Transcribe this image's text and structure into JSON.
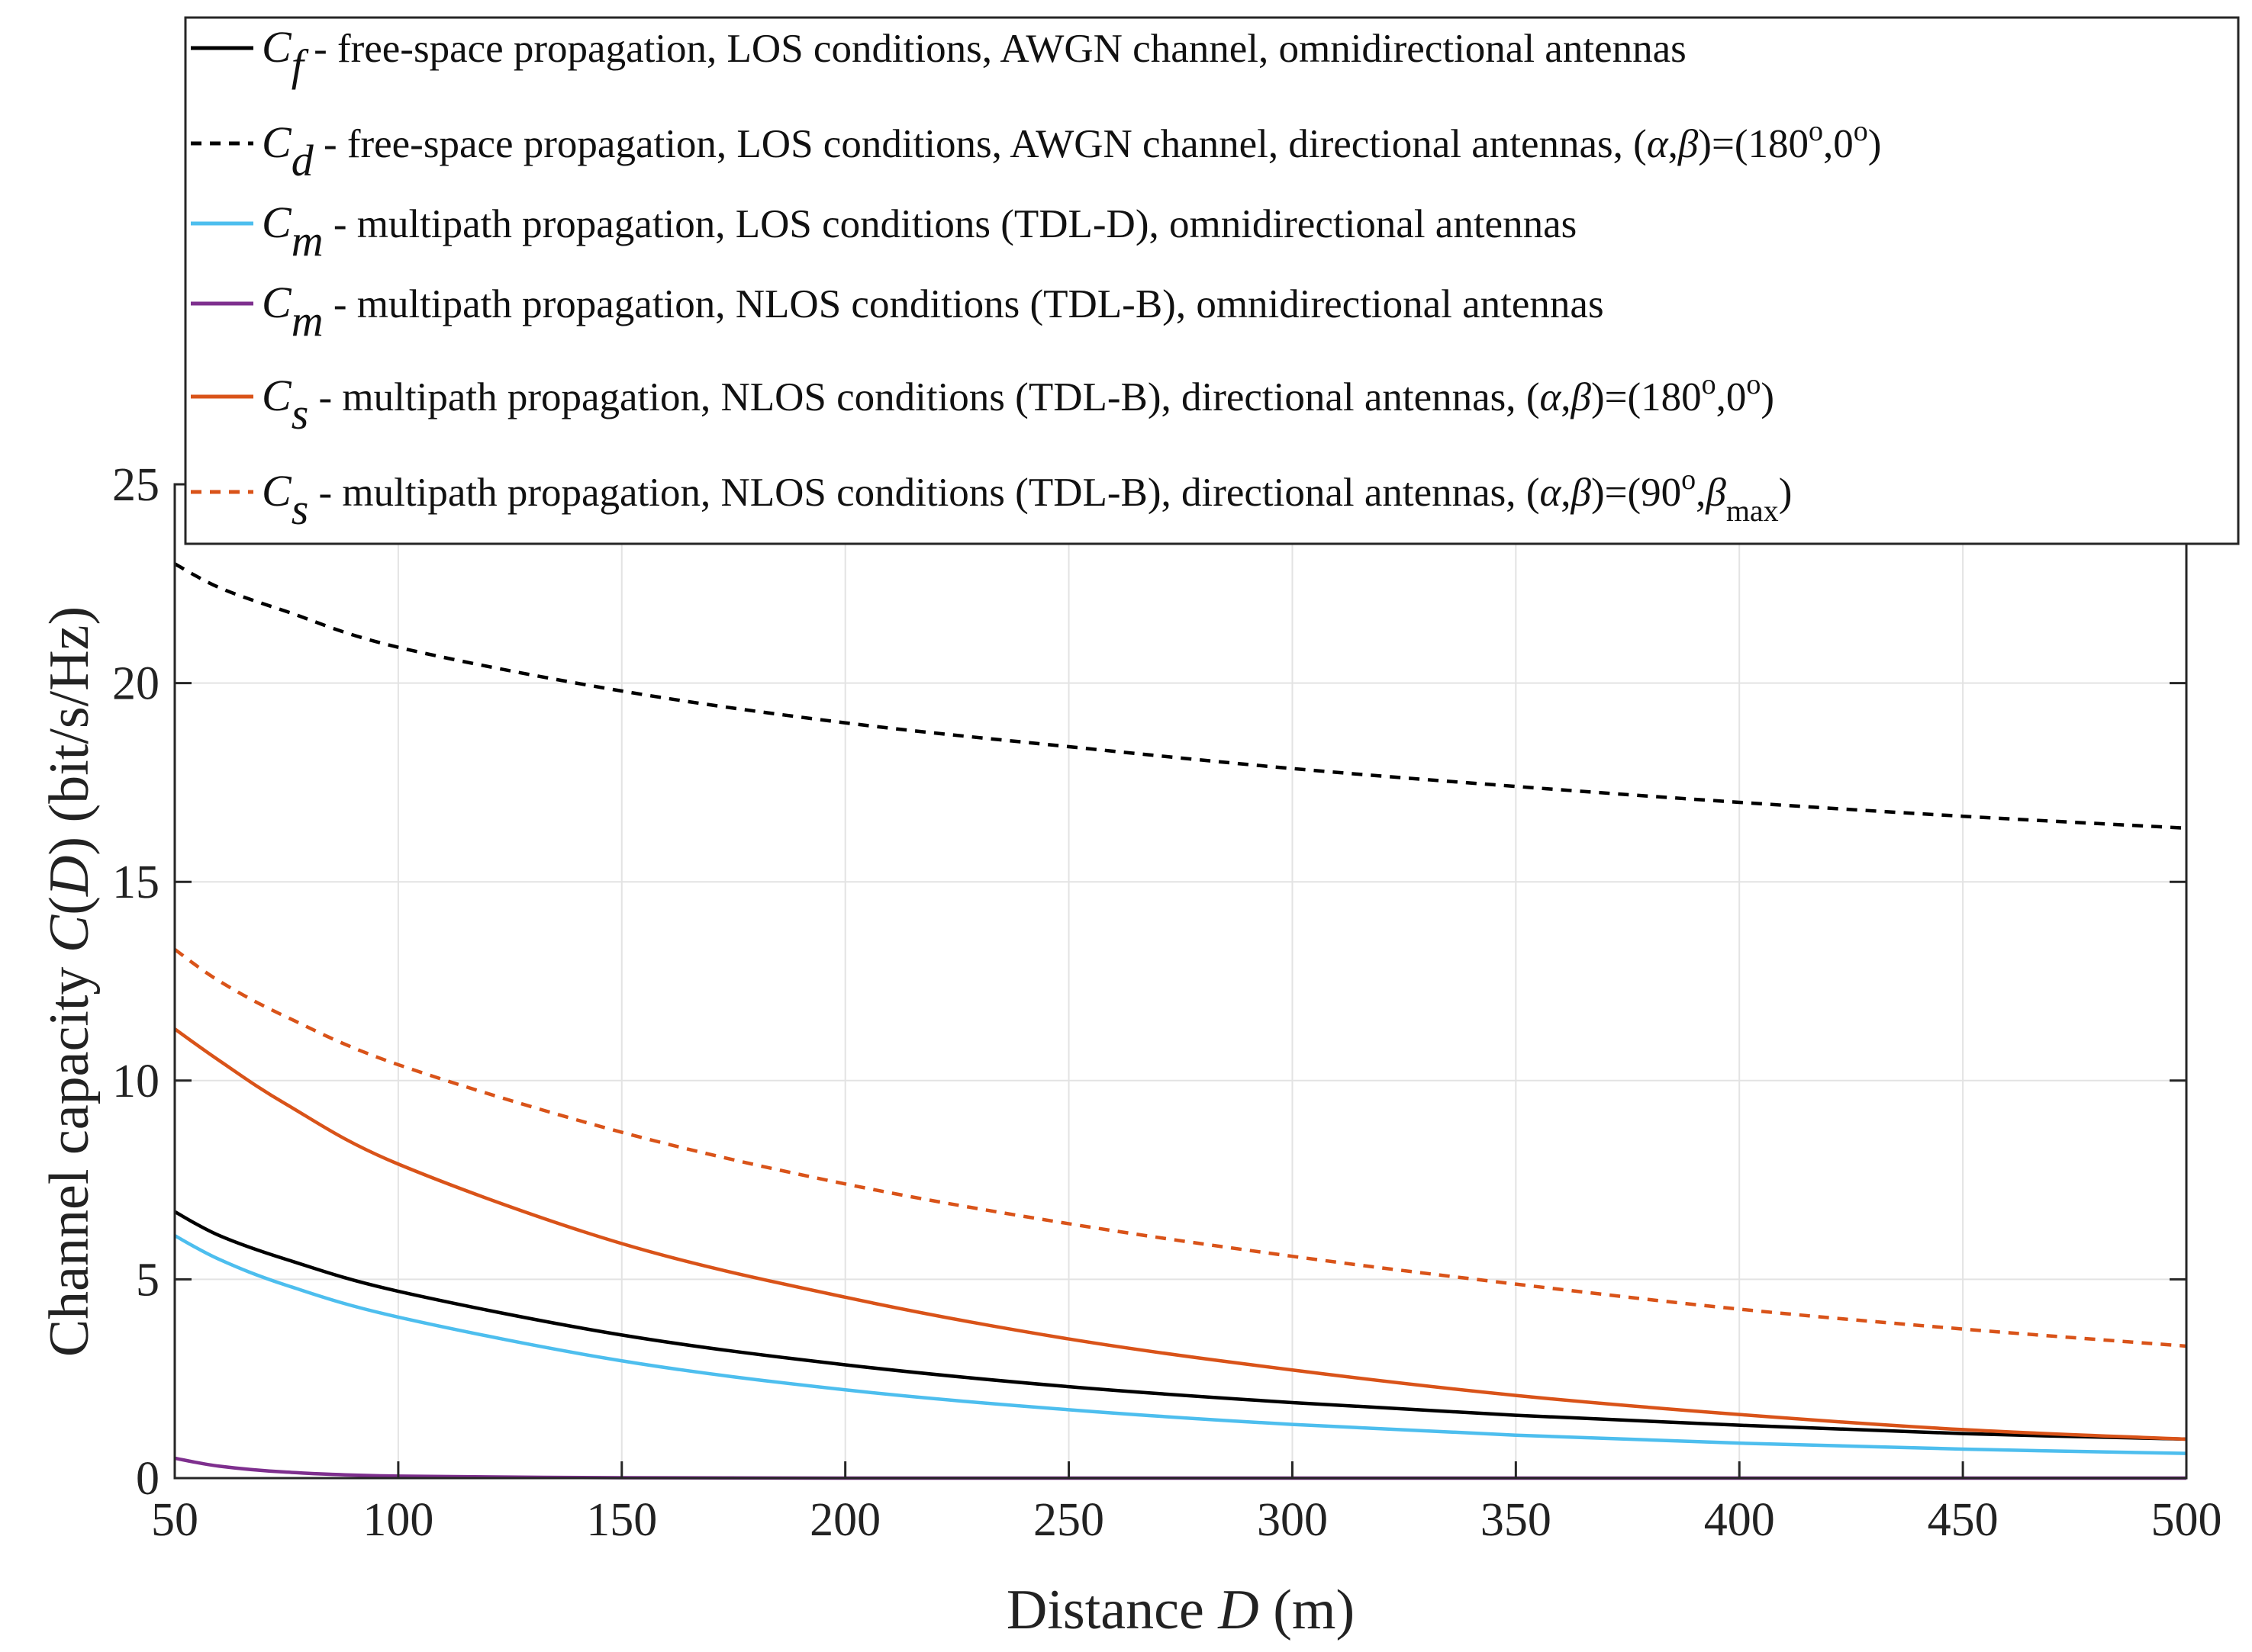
{
  "chart_data": {
    "type": "line",
    "title": "",
    "xlabel": {
      "prefix": "Distance ",
      "variable": "D",
      "suffix": " (m)"
    },
    "ylabel": {
      "prefix": "Channel capacity ",
      "variable": "C",
      "paren_open": "(",
      "arg": "D",
      "paren_close": ")",
      "suffix": " (bit/s/Hz)"
    },
    "xlim": [
      50,
      500
    ],
    "ylim": [
      0,
      25
    ],
    "xticks": [
      50,
      100,
      150,
      200,
      250,
      300,
      350,
      400,
      450,
      500
    ],
    "yticks": [
      0,
      5,
      10,
      15,
      20,
      25
    ],
    "xtick_labels": [
      "50",
      "100",
      "150",
      "200",
      "250",
      "300",
      "350",
      "400",
      "450",
      "500"
    ],
    "ytick_labels": [
      "0",
      "5",
      "10",
      "15",
      "20",
      "25"
    ],
    "grid": true,
    "legend_position": "top",
    "x": [
      50,
      60,
      75,
      100,
      150,
      200,
      250,
      300,
      350,
      400,
      450,
      500
    ],
    "series": [
      {
        "symbol": "C",
        "subscript": "f",
        "description": " - free-space propagation, LOS conditions, AWGN channel, omnidirectional antennas",
        "color": "#000000",
        "dash": "solid",
        "values": [
          6.7,
          6.1,
          5.5,
          4.7,
          3.6,
          2.85,
          2.3,
          1.9,
          1.58,
          1.33,
          1.12,
          0.98
        ]
      },
      {
        "symbol": "C",
        "subscript": "d",
        "description": " - free-space propagation, LOS conditions, AWGN channel, directional antennas, ",
        "angles": {
          "open": "(",
          "a": "α",
          "comma": ",",
          "b": "β",
          "close": ")=(180",
          "deg1": "o",
          "sep": ",0",
          "deg2": "o",
          "end": ")"
        },
        "color": "#000000",
        "dash": "dashed",
        "values": [
          23.0,
          22.4,
          21.8,
          20.9,
          19.8,
          19.0,
          18.4,
          17.85,
          17.4,
          17.0,
          16.65,
          16.35
        ]
      },
      {
        "symbol": "C",
        "subscript": "m",
        "description": " - multipath propagation, LOS conditions (TDL-D), omnidirectional antennas",
        "color": "#4dbeee",
        "dash": "solid",
        "values": [
          6.1,
          5.5,
          4.85,
          4.05,
          2.95,
          2.22,
          1.72,
          1.35,
          1.08,
          0.88,
          0.73,
          0.62
        ]
      },
      {
        "symbol": "C",
        "subscript": "m",
        "description": " - multipath propagation, NLOS conditions (TDL-B), omnidirectional antennas",
        "color": "#7e2f8e",
        "dash": "solid",
        "values": [
          0.5,
          0.3,
          0.15,
          0.05,
          0.01,
          0.0,
          0.0,
          0.0,
          0.0,
          0.0,
          0.0,
          0.0
        ]
      },
      {
        "symbol": "C",
        "subscript": "s",
        "description": " - multipath propagation, NLOS conditions (TDL-B), directional antennas, ",
        "angles": {
          "open": "(",
          "a": "α",
          "comma": ",",
          "b": "β",
          "close": ")=(180",
          "deg1": "o",
          "sep": ",0",
          "deg2": "o",
          "end": ")"
        },
        "color": "#d95319",
        "dash": "solid",
        "values": [
          11.3,
          10.5,
          9.4,
          7.9,
          5.9,
          4.55,
          3.5,
          2.72,
          2.08,
          1.6,
          1.22,
          0.98
        ]
      },
      {
        "symbol": "C",
        "subscript": "s",
        "description": " - multipath propagation, NLOS conditions (TDL-B), directional antennas, ",
        "angles": {
          "open": "(",
          "a": "α",
          "comma": ",",
          "b": "β",
          "close": ")=(90",
          "deg1": "o",
          "sep": ",",
          "b2": "β",
          "sub2": "max",
          "end": ")"
        },
        "color": "#d95319",
        "dash": "dashed",
        "values": [
          13.3,
          12.5,
          11.6,
          10.4,
          8.7,
          7.4,
          6.4,
          5.58,
          4.88,
          4.25,
          3.75,
          3.32
        ]
      }
    ]
  }
}
